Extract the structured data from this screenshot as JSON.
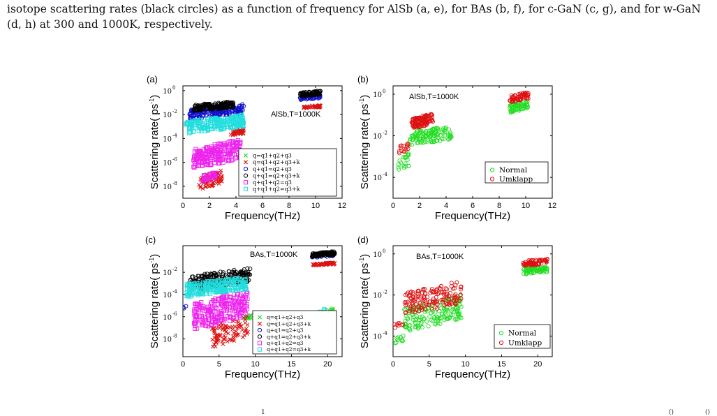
{
  "caption": {
    "line1": "isotope scattering rates (black circles) as a function of frequency for AlSb (a, e), for BAs (b, f), for c-GaN (c, g), and for w-GaN",
    "line2": "(d, h) at 300 and 1000K, respectively."
  },
  "footer": {
    "left": "1",
    "right1": "()",
    "right2": "()"
  },
  "chart_data": [
    {
      "type": "scatter",
      "panel": "(a)",
      "annotation": "AlSb,T=1000K",
      "xlabel": "Frequency(THz)",
      "ylabel": "Scattering rate( ps",
      "ylabel_sup": "-1",
      "ylabel_close": ")",
      "xlim": [
        0,
        12
      ],
      "ylim_exp": [
        -9,
        0.4
      ],
      "xticks": [
        "0",
        "2",
        "4",
        "6",
        "8",
        "10",
        "12"
      ],
      "yticks": [
        {
          "base": "10",
          "exp": "0",
          "v": 0
        },
        {
          "base": "10",
          "exp": "-2",
          "v": -2
        },
        {
          "base": "10",
          "exp": "-4",
          "v": -4
        },
        {
          "base": "10",
          "exp": "-6",
          "v": -6
        },
        {
          "base": "10",
          "exp": "-8",
          "v": -8
        }
      ],
      "log_y": true,
      "legend": "bottom-right",
      "series": [
        {
          "name": "q=q1+q2+q3",
          "marker": "x",
          "color": "#22dd22",
          "clusters": [
            [
              8.8,
              10.2,
              -7,
              -5.2,
              160
            ],
            [
              9.6,
              10.4,
              -6.8,
              -6.2,
              40
            ]
          ]
        },
        {
          "name": "q=q1+q2+q3+k",
          "marker": "x",
          "color": "#dd1111",
          "clusters": [
            [
              1.2,
              3.0,
              -8.3,
              -6.6,
              70
            ],
            [
              3.6,
              4.6,
              -3.8,
              -3.2,
              40
            ],
            [
              9.0,
              10.4,
              -1.5,
              -1.2,
              40
            ]
          ]
        },
        {
          "name": "q+q1=q2+q3",
          "marker": "o",
          "color": "#1111cc",
          "clusters": [
            [
              0.5,
              4.6,
              -2.4,
              -1.1,
              200
            ],
            [
              8.8,
              10.4,
              -0.8,
              -0.3,
              50
            ]
          ]
        },
        {
          "name": "q+q1=q2+q3+k",
          "marker": "o",
          "color": "#000000",
          "clusters": [
            [
              0.8,
              3.8,
              -1.7,
              -0.9,
              160
            ],
            [
              8.8,
              10.4,
              -0.5,
              0.0,
              80
            ]
          ]
        },
        {
          "name": "q+q1+q2=q3",
          "marker": "s",
          "color": "#ee22ee",
          "clusters": [
            [
              0.8,
              4.4,
              -6.6,
              -4.0,
              220
            ],
            [
              1.5,
              2.6,
              -7.6,
              -6.8,
              30
            ]
          ]
        },
        {
          "name": "q+q1+q2=q3+k",
          "marker": "s",
          "color": "#22dddd",
          "clusters": [
            [
              0.2,
              4.6,
              -3.6,
              -2.0,
              200
            ],
            [
              8.8,
              9.8,
              -7.6,
              -5.0,
              60
            ]
          ]
        }
      ]
    },
    {
      "type": "scatter",
      "panel": "(b)",
      "annotation": "AlSb,T=1000K",
      "xlabel": "Frequency(THz)",
      "ylabel": "Scattering rate( ps",
      "ylabel_sup": "-1",
      "ylabel_close": ")",
      "xlim": [
        0,
        12
      ],
      "ylim_exp": [
        -5,
        0.4
      ],
      "xticks": [
        "0",
        "2",
        "4",
        "6",
        "8",
        "10",
        "12"
      ],
      "yticks": [
        {
          "base": "10",
          "exp": "0",
          "v": 0
        },
        {
          "base": "10",
          "exp": "-2",
          "v": -2
        },
        {
          "base": "10",
          "exp": "-4",
          "v": -4
        }
      ],
      "log_y": true,
      "legend": "bottom-right",
      "series": [
        {
          "name": "Normal",
          "marker": "o",
          "color": "#22dd22",
          "clusters": [
            [
              0.4,
              1.2,
              -3.8,
              -2.8,
              20
            ],
            [
              1.2,
              4.4,
              -2.5,
              -1.5,
              120
            ],
            [
              8.8,
              10.2,
              -0.9,
              -0.3,
              60
            ]
          ]
        },
        {
          "name": "Umklapp",
          "marker": "o",
          "color": "#dd1111",
          "clusters": [
            [
              0.4,
              1.2,
              -2.9,
              -2.3,
              15
            ],
            [
              1.4,
              3.0,
              -1.7,
              -0.9,
              110
            ],
            [
              8.8,
              10.2,
              -0.4,
              0.1,
              60
            ]
          ]
        }
      ]
    },
    {
      "type": "scatter",
      "panel": "(c)",
      "annotation": "BAs,T=1000K",
      "xlabel": "Frequency(THz)",
      "ylabel": "Scattering rate( ps",
      "ylabel_sup": "-1",
      "ylabel_close": ")",
      "xlim": [
        0,
        22
      ],
      "ylim_exp": [
        -9.6,
        0.4
      ],
      "xticks": [
        "0",
        "5",
        "10",
        "15",
        "20"
      ],
      "xtick_vals": [
        0,
        5,
        10,
        15,
        20
      ],
      "yticks": [
        {
          "base": "10",
          "exp": "-2",
          "v": -2
        },
        {
          "base": "10",
          "exp": "-4",
          "v": -4
        },
        {
          "base": "10",
          "exp": "-6",
          "v": -6
        },
        {
          "base": "10",
          "exp": "-8",
          "v": -8
        }
      ],
      "log_y": true,
      "legend": "bottom-right",
      "series": [
        {
          "name": "q=q1+q2+q3",
          "marker": "x",
          "color": "#22dd22",
          "clusters": [
            [
              17.8,
              21.0,
              -6.8,
              -5.2,
              120
            ],
            [
              8.5,
              9.5,
              -6.3,
              -5.8,
              15
            ]
          ]
        },
        {
          "name": "q=q1+q2+q3+k",
          "marker": "x",
          "color": "#dd1111",
          "clusters": [
            [
              4.0,
              9.0,
              -8.8,
              -5.8,
              90
            ],
            [
              18.0,
              21.0,
              -1.4,
              -1.1,
              60
            ]
          ]
        },
        {
          "name": "q+q1=q2+q3",
          "marker": "o",
          "color": "#1111cc",
          "clusters": [
            [
              0.0,
              0.5,
              -5.4,
              -5.0,
              4
            ],
            [
              17.8,
              21.0,
              -0.7,
              -0.2,
              30
            ]
          ]
        },
        {
          "name": "q+q1=q2+q3+k",
          "marker": "o",
          "color": "#000000",
          "clusters": [
            [
              1.0,
              9.3,
              -3.6,
              -1.6,
              220
            ],
            [
              17.8,
              21.0,
              -0.6,
              -0.1,
              90
            ]
          ]
        },
        {
          "name": "q+q1+q2=q3",
          "marker": "s",
          "color": "#ee22ee",
          "clusters": [
            [
              1.5,
              9.0,
              -7.2,
              -3.6,
              220
            ]
          ]
        },
        {
          "name": "q+q1+q2=q3+k",
          "marker": "s",
          "color": "#22dddd",
          "clusters": [
            [
              0.5,
              8.8,
              -4.2,
              -2.4,
              220
            ],
            [
              17.8,
              19.8,
              -8.6,
              -5.0,
              60
            ]
          ]
        }
      ]
    },
    {
      "type": "scatter",
      "panel": "(d)",
      "annotation": "BAs,T=1000K",
      "xlabel": "Frequency(THz)",
      "ylabel": "Scattering rate( ps",
      "ylabel_sup": "-1",
      "ylabel_close": ")",
      "xlim": [
        0,
        22
      ],
      "ylim_exp": [
        -5,
        0.4
      ],
      "xticks": [
        "0",
        "5",
        "10",
        "15",
        "20"
      ],
      "xtick_vals": [
        0,
        5,
        10,
        15,
        20
      ],
      "yticks": [
        {
          "base": "10",
          "exp": "0",
          "v": 0
        },
        {
          "base": "10",
          "exp": "-2",
          "v": -2
        },
        {
          "base": "10",
          "exp": "-4",
          "v": -4
        }
      ],
      "log_y": true,
      "legend": "bottom-right",
      "series": [
        {
          "name": "Normal",
          "marker": "o",
          "color": "#22dd22",
          "clusters": [
            [
              0.0,
              1.5,
              -4.6,
              -3.9,
              10
            ],
            [
              1.5,
              9.5,
              -3.8,
              -2.0,
              160
            ],
            [
              18.0,
              21.5,
              -1.0,
              -0.6,
              70
            ]
          ]
        },
        {
          "name": "Umklapp",
          "marker": "o",
          "color": "#dd1111",
          "clusters": [
            [
              0.0,
              1.5,
              -3.7,
              -3.3,
              8
            ],
            [
              1.5,
              9.5,
              -3.0,
              -1.3,
              150
            ],
            [
              18.0,
              21.5,
              -0.6,
              -0.2,
              70
            ]
          ]
        }
      ]
    }
  ]
}
